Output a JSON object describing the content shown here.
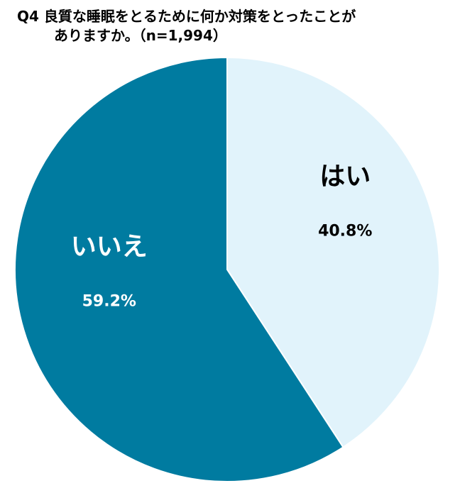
{
  "title_line1": "Q4 良質な睡眠をとるために何か対策をとったことが",
  "title_line2": "ありますか。（n=1,994）",
  "chart_data": {
    "type": "pie",
    "title": "Q4 良質な睡眠をとるために何か対策をとったことがありますか。（n=1,994）",
    "slices": [
      {
        "label": "はい",
        "value": 40.8,
        "value_label": "40.8%",
        "color": "#e1f3fb",
        "text_color": "#000000"
      },
      {
        "label": "いいえ",
        "value": 59.2,
        "value_label": "59.2%",
        "color": "#007ba0",
        "text_color": "#ffffff"
      }
    ],
    "start": "12 o'clock",
    "direction": "clockwise",
    "legend": "none"
  }
}
